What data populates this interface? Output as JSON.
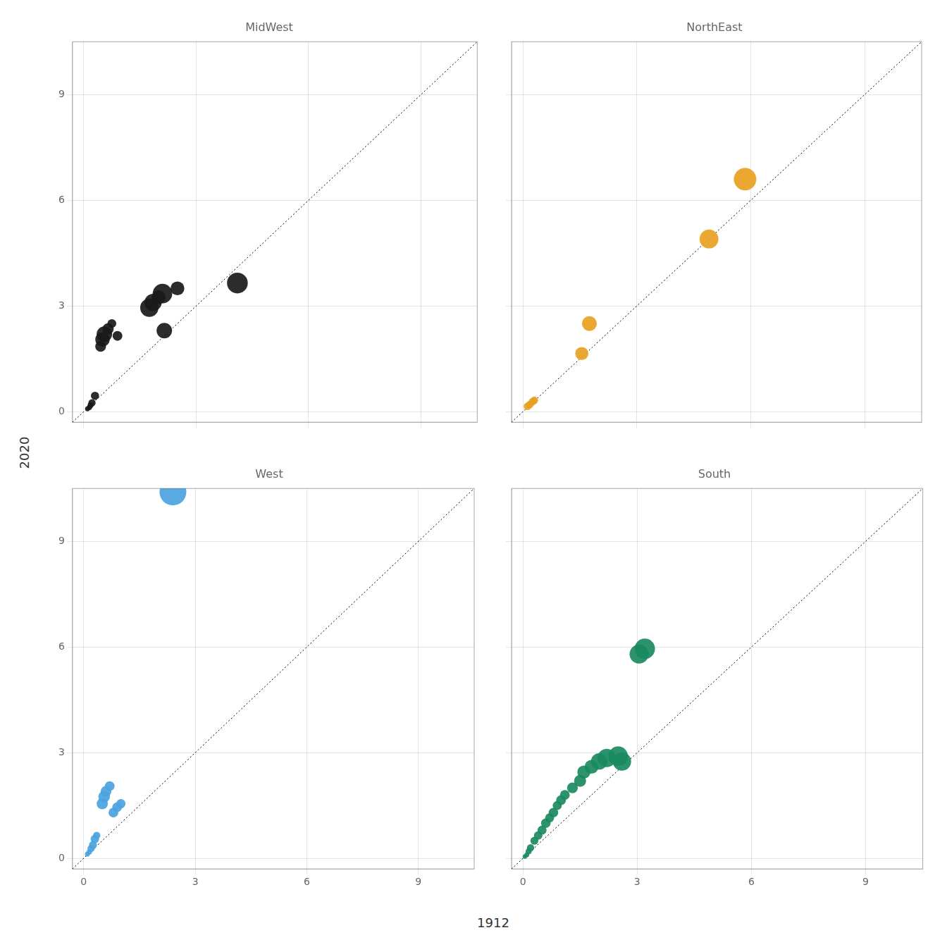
{
  "chart_data": [
    {
      "type": "scatter",
      "title": "MidWest",
      "color": "#1a1a1a",
      "x": [
        0.1,
        0.15,
        0.18,
        0.22,
        0.3,
        0.45,
        0.5,
        0.55,
        0.65,
        0.75,
        0.9,
        1.75,
        1.85,
        2.0,
        2.1,
        2.15,
        2.5,
        4.1
      ],
      "values": [
        0.08,
        0.12,
        0.18,
        0.25,
        0.45,
        1.85,
        2.05,
        2.2,
        2.35,
        2.5,
        2.15,
        2.95,
        3.1,
        3.25,
        3.35,
        2.3,
        3.5,
        3.65
      ],
      "size": [
        25,
        30,
        35,
        55,
        70,
        120,
        220,
        250,
        130,
        80,
        100,
        350,
        310,
        200,
        400,
        250,
        200,
        450
      ],
      "xlim": [
        -0.3,
        10.5
      ],
      "ylim": [
        -0.3,
        10.5
      ],
      "xticks": [
        0,
        3,
        6,
        9
      ],
      "yticks": [
        0,
        3,
        6,
        9
      ],
      "grid": true,
      "tick_labels": "y"
    },
    {
      "type": "scatter",
      "title": "NorthEast",
      "color": "#E8A020",
      "x": [
        0.12,
        0.18,
        0.25,
        0.3,
        1.55,
        1.75,
        4.9,
        5.85
      ],
      "values": [
        0.15,
        0.2,
        0.28,
        0.32,
        1.65,
        2.5,
        4.9,
        6.6
      ],
      "size": [
        60,
        60,
        60,
        60,
        180,
        230,
        370,
        530
      ],
      "xlim": [
        -0.3,
        10.5
      ],
      "ylim": [
        -0.3,
        10.5
      ],
      "xticks": [
        0,
        3,
        6,
        9
      ],
      "yticks": [
        0,
        3,
        6,
        9
      ],
      "grid": true,
      "tick_labels": false
    },
    {
      "type": "scatter",
      "title": "West",
      "color": "#4BA3E0",
      "x": [
        0.1,
        0.15,
        0.2,
        0.25,
        0.3,
        0.35,
        0.5,
        0.55,
        0.6,
        0.7,
        0.8,
        0.9,
        1.0,
        2.4
      ],
      "values": [
        0.12,
        0.18,
        0.28,
        0.38,
        0.55,
        0.65,
        1.55,
        1.75,
        1.9,
        2.05,
        1.3,
        1.45,
        1.55,
        10.4
      ],
      "size": [
        25,
        30,
        55,
        65,
        75,
        55,
        130,
        140,
        120,
        100,
        100,
        100,
        90,
        750
      ],
      "xlim": [
        -0.3,
        10.5
      ],
      "ylim": [
        -0.3,
        10.5
      ],
      "xticks": [
        0,
        3,
        6,
        9
      ],
      "yticks": [
        0,
        3,
        6,
        9
      ],
      "grid": true,
      "xlabel": "1912",
      "ylabel": "2020"
    },
    {
      "type": "scatter",
      "title": "South",
      "color": "#1A8A60",
      "x": [
        0.05,
        0.1,
        0.15,
        0.2,
        0.3,
        0.4,
        0.5,
        0.6,
        0.7,
        0.8,
        0.9,
        1.0,
        1.1,
        1.3,
        1.5,
        1.6,
        1.8,
        2.0,
        2.2,
        2.5,
        2.6,
        3.05,
        3.2
      ],
      "values": [
        0.05,
        0.1,
        0.2,
        0.3,
        0.5,
        0.65,
        0.8,
        1.0,
        1.15,
        1.3,
        1.5,
        1.65,
        1.8,
        2.0,
        2.2,
        2.45,
        2.6,
        2.75,
        2.85,
        2.9,
        2.75,
        5.8,
        5.95
      ],
      "size": [
        20,
        25,
        40,
        55,
        65,
        75,
        85,
        95,
        85,
        95,
        85,
        100,
        100,
        120,
        150,
        180,
        200,
        280,
        350,
        400,
        350,
        380,
        430
      ],
      "xlim": [
        -0.3,
        10.5
      ],
      "ylim": [
        -0.3,
        10.5
      ],
      "xticks": [
        0,
        3,
        6,
        9
      ],
      "yticks": [
        0,
        3,
        6,
        9
      ],
      "grid": true,
      "tick_labels": "x"
    }
  ]
}
